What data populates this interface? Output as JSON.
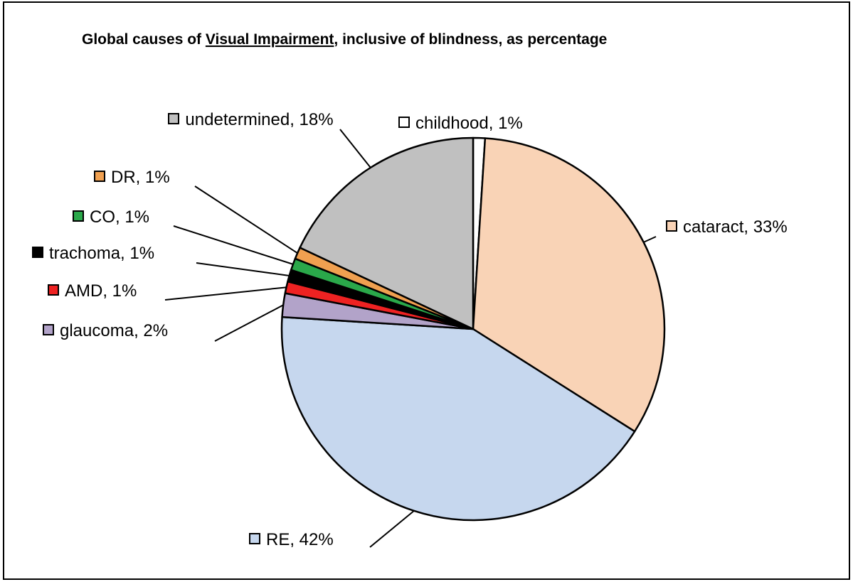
{
  "chart_data": {
    "type": "pie",
    "title": [
      "Global causes of ",
      "Visual Impairment",
      ", inclusive of blindness, as percentage"
    ],
    "values": [
      1,
      33,
      42,
      2,
      1,
      1,
      1,
      1,
      18
    ],
    "value_labels": [
      "childhood, 1%",
      "cataract, 33%",
      "RE, 42%",
      "glaucoma, 2%",
      "AMD, 1%",
      "trachoma, 1%",
      "CO, 1%",
      "DR, 1%",
      "undetermined, 18%"
    ],
    "colors": [
      "#ffffff",
      "#f9d3b6",
      "#c6d7ee",
      "#b2a3c9",
      "#ee2222",
      "#000000",
      "#2aa84a",
      "#f0a050",
      "#c0c0c0"
    ]
  }
}
